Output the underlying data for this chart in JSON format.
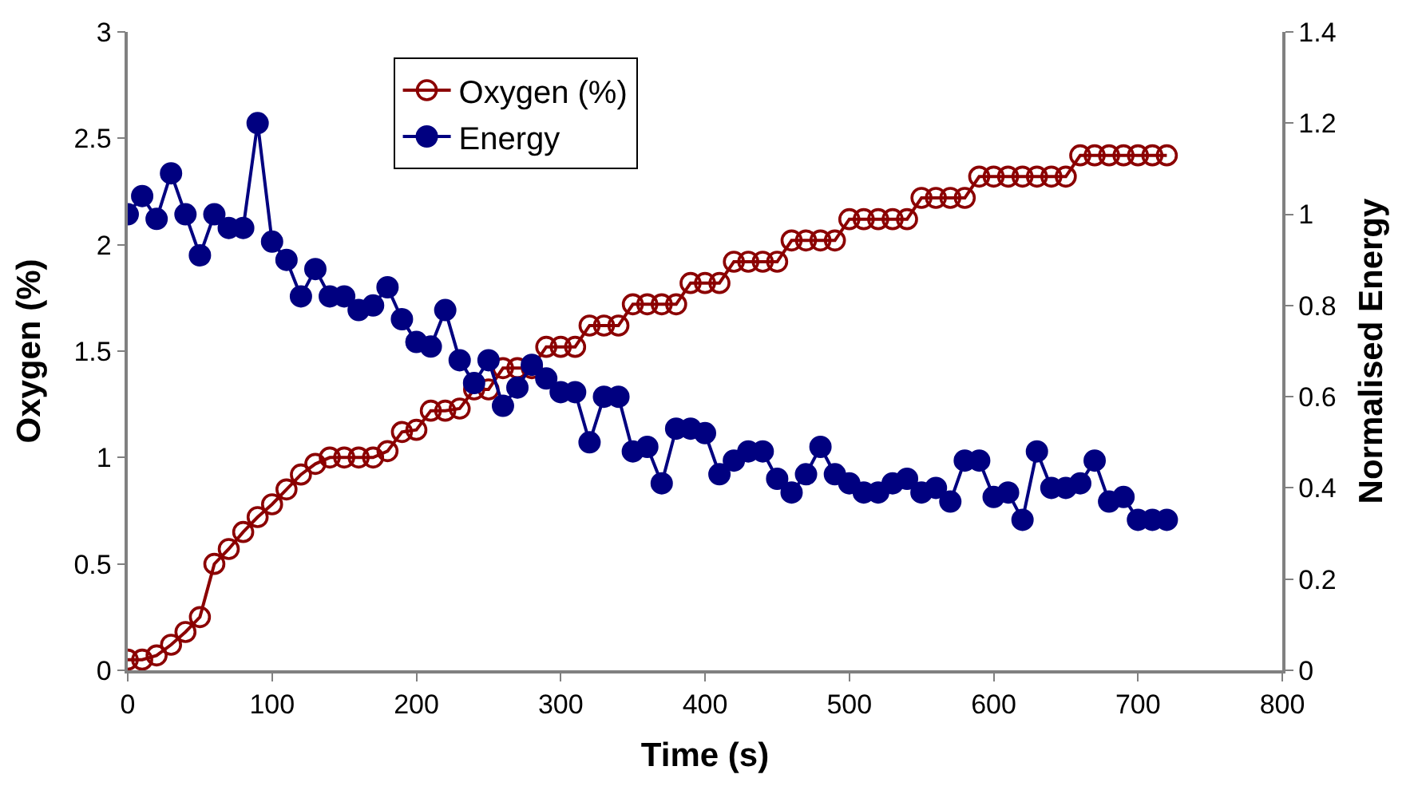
{
  "chart_data": {
    "type": "line",
    "xlabel": "Time (s)",
    "ylabel": "Oxygen (%)",
    "y2label": "Normalised Energy",
    "xlim": [
      0,
      800
    ],
    "xticks": [
      0,
      100,
      200,
      300,
      400,
      500,
      600,
      700,
      800
    ],
    "ylim": [
      0,
      3
    ],
    "yticks": [
      0,
      0.5,
      1,
      1.5,
      2,
      2.5,
      3
    ],
    "y2lim": [
      0,
      1.4
    ],
    "y2ticks": [
      0,
      0.2,
      0.4,
      0.6,
      0.8,
      1,
      1.2,
      1.4
    ],
    "x": [
      0,
      10,
      20,
      30,
      40,
      50,
      60,
      70,
      80,
      90,
      100,
      110,
      120,
      130,
      140,
      150,
      160,
      170,
      180,
      190,
      200,
      210,
      220,
      230,
      240,
      250,
      260,
      270,
      280,
      290,
      300,
      310,
      320,
      330,
      340,
      350,
      360,
      370,
      380,
      390,
      400,
      410,
      420,
      430,
      440,
      450,
      460,
      470,
      480,
      490,
      500,
      510,
      520,
      530,
      540,
      550,
      560,
      570,
      580,
      590,
      600,
      610,
      620,
      630,
      640,
      650,
      660,
      670,
      680,
      690,
      700,
      710,
      720
    ],
    "series": [
      {
        "name": "Oxygen (%)",
        "color": "#8b0000",
        "marker": "circle",
        "values": [
          0.05,
          0.05,
          0.07,
          0.12,
          0.18,
          0.25,
          0.5,
          0.57,
          0.65,
          0.72,
          0.78,
          0.85,
          0.92,
          0.97,
          1.0,
          1.0,
          1.0,
          1.0,
          1.03,
          1.12,
          1.13,
          1.22,
          1.22,
          1.23,
          1.32,
          1.32,
          1.42,
          1.42,
          1.42,
          1.52,
          1.52,
          1.52,
          1.62,
          1.62,
          1.62,
          1.72,
          1.72,
          1.72,
          1.72,
          1.82,
          1.82,
          1.82,
          1.92,
          1.92,
          1.92,
          1.92,
          2.02,
          2.02,
          2.02,
          2.02,
          2.12,
          2.12,
          2.12,
          2.12,
          2.12,
          2.22,
          2.22,
          2.22,
          2.22,
          2.32,
          2.32,
          2.32,
          2.32,
          2.32,
          2.32,
          2.32,
          2.42,
          2.42,
          2.42,
          2.42,
          2.42,
          2.42,
          2.42
        ]
      },
      {
        "name": "Energy",
        "color": "#000080",
        "marker": "circle",
        "axis": "y2",
        "values": [
          1.0,
          1.04,
          0.99,
          1.09,
          1.0,
          0.91,
          1.0,
          0.97,
          0.97,
          1.2,
          0.94,
          0.9,
          0.82,
          0.88,
          0.82,
          0.82,
          0.79,
          0.8,
          0.84,
          0.77,
          0.72,
          0.71,
          0.79,
          0.68,
          0.63,
          0.68,
          0.58,
          0.62,
          0.67,
          0.64,
          0.61,
          0.61,
          0.5,
          0.6,
          0.6,
          0.48,
          0.49,
          0.41,
          0.53,
          0.53,
          0.52,
          0.43,
          0.46,
          0.48,
          0.48,
          0.42,
          0.39,
          0.43,
          0.49,
          0.43,
          0.41,
          0.39,
          0.39,
          0.41,
          0.42,
          0.39,
          0.4,
          0.37,
          0.46,
          0.46,
          0.38,
          0.39,
          0.33,
          0.48,
          0.4,
          0.4,
          0.41,
          0.46,
          0.37,
          0.38,
          0.33,
          0.33,
          0.33
        ]
      }
    ],
    "legend": "top"
  }
}
